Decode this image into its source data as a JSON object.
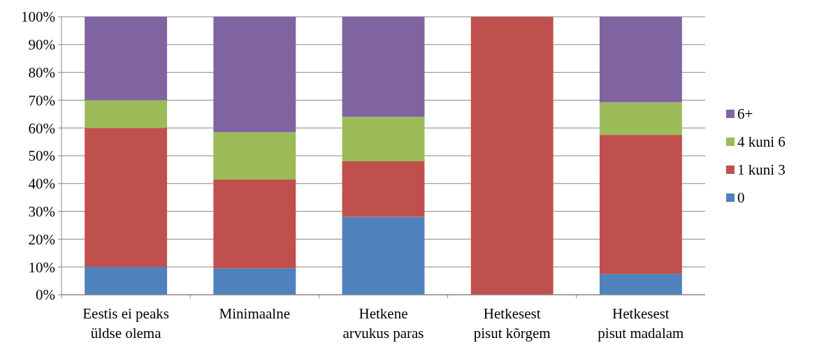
{
  "chart_data": {
    "type": "bar",
    "stacked": true,
    "categories": [
      "Eestis ei peaks üldse olema",
      "Minimaalne",
      "Hetkene arvukus paras",
      "Hetkesest pisut kõrgem",
      "Hetkesest pisut madalam"
    ],
    "series": [
      {
        "name": "0",
        "color": "#4f81bd",
        "values": [
          10,
          9.5,
          28,
          0,
          7.5
        ]
      },
      {
        "name": "1 kuni 3",
        "color": "#c0504d",
        "values": [
          50,
          32,
          20,
          100,
          50
        ]
      },
      {
        "name": "4 kuni 6",
        "color": "#9bbb59",
        "values": [
          10,
          17,
          16,
          0,
          11.7
        ]
      },
      {
        "name": "6+",
        "color": "#8064a2",
        "values": [
          30,
          41.5,
          36,
          0,
          30.8
        ]
      }
    ],
    "ylim": [
      0,
      100
    ],
    "yticks": [
      {
        "value": 0,
        "label": "0%"
      },
      {
        "value": 10,
        "label": "10%"
      },
      {
        "value": 20,
        "label": "20%"
      },
      {
        "value": 30,
        "label": "30%"
      },
      {
        "value": 40,
        "label": "40%"
      },
      {
        "value": 50,
        "label": "50%"
      },
      {
        "value": 60,
        "label": "60%"
      },
      {
        "value": 70,
        "label": "70%"
      },
      {
        "value": 80,
        "label": "80%"
      },
      {
        "value": 90,
        "label": "90%"
      },
      {
        "value": 100,
        "label": "100%"
      }
    ],
    "grid": "y",
    "legend": "right"
  }
}
